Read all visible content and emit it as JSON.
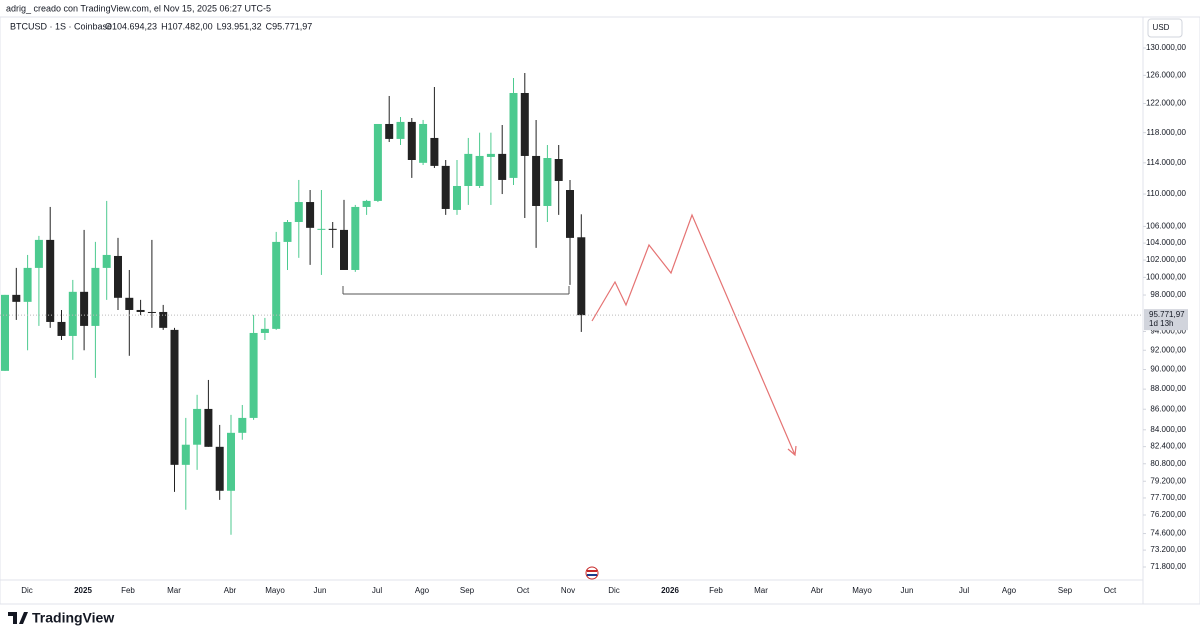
{
  "header": {
    "byline": "adrig_ creado con TradingView.com, el Nov 15, 2025 06:27 UTC-5",
    "symbol": "BTCUSD · 1S · Coinbase",
    "ohlc": [
      {
        "label": "O",
        "value": "104.694,23"
      },
      {
        "label": "H",
        "value": "107.482,00"
      },
      {
        "label": "L",
        "value": "93.951,32"
      },
      {
        "label": "C",
        "value": "95.771,97"
      }
    ]
  },
  "footer": {
    "brand": "TradingView"
  },
  "chart_data": {
    "type": "candlestick",
    "currency": "USD",
    "log_scale": true,
    "grid": false,
    "up_color": "#4cca8f",
    "down_color": "#222222",
    "categories": [
      null,
      null,
      null,
      null,
      null,
      null,
      null,
      null,
      null,
      null,
      null,
      null,
      null,
      null,
      null,
      null,
      null,
      null,
      null,
      null,
      null,
      null,
      null,
      null,
      null,
      null,
      null,
      null,
      null,
      null,
      null,
      null,
      null,
      null,
      null,
      null,
      null,
      null,
      null,
      null,
      null,
      null,
      null,
      null,
      null,
      null,
      null,
      null,
      null,
      null,
      null,
      null
    ],
    "open": [
      89860,
      98020,
      97240,
      101090,
      104380,
      95030,
      93520,
      98360,
      94600,
      101090,
      102480,
      97690,
      96340,
      96120,
      96120,
      94170,
      80700,
      82580,
      86030,
      82380,
      78340,
      83710,
      85150,
      93840,
      94280,
      104140,
      106540,
      109000,
      105710,
      105710,
      105580,
      100850,
      108390,
      109140,
      119180,
      117160,
      119460,
      114000,
      117290,
      113600,
      108020,
      111020,
      111020,
      114770,
      115170,
      112050,
      123480,
      114900,
      108510,
      114500,
      110510,
      104694.23
    ],
    "high": [
      98020,
      101090,
      102600,
      104860,
      108390,
      96340,
      99710,
      105580,
      104140,
      109140,
      104620,
      100850,
      97460,
      104380,
      96900,
      94390,
      85150,
      87430,
      88930,
      84470,
      85450,
      86420,
      95800,
      95470,
      105340,
      106780,
      111790,
      110510,
      110510,
      106540,
      109270,
      108640,
      109270,
      119180,
      123060,
      120130,
      120000,
      119730,
      124330,
      114370,
      114370,
      117290,
      118000,
      118000,
      119040,
      125620,
      126330,
      119730,
      116350,
      116350,
      111790,
      107482
    ],
    "low": [
      89860,
      95250,
      92000,
      94600,
      94390,
      93090,
      91000,
      92000,
      89140,
      97460,
      96340,
      91420,
      95772,
      94390,
      94170,
      78240,
      76660,
      80240,
      82380,
      77530,
      74500,
      83050,
      84960,
      93090,
      94170,
      100850,
      102260,
      101440,
      100280,
      103430,
      100850,
      100630,
      107410,
      109000,
      116750,
      116350,
      112050,
      113720,
      113330,
      107410,
      107410,
      108640,
      110770,
      108640,
      110000,
      111150,
      107030,
      103430,
      106540,
      107410,
      99140,
      93951.32
    ],
    "close": [
      98020,
      97240,
      101090,
      104380,
      95030,
      93520,
      98360,
      94600,
      101090,
      102600,
      97690,
      96340,
      96120,
      96020,
      94390,
      80700,
      82580,
      86030,
      82380,
      78340,
      83710,
      85150,
      93840,
      94280,
      104140,
      106540,
      109000,
      105830,
      105710,
      105580,
      100850,
      108390,
      109140,
      119180,
      117160,
      119460,
      114370,
      119180,
      113600,
      108140,
      111020,
      115170,
      114900,
      115170,
      111790,
      123480,
      114900,
      108510,
      114630,
      111660,
      104620,
      95771.97
    ],
    "last_price": 95771.97,
    "last_price_label": "95.771,97",
    "countdown": "1d 13h",
    "ylim": [
      70740,
      134540
    ],
    "yticks": [
      {
        "value": 130000,
        "label": "130.000,00"
      },
      {
        "value": 126000,
        "label": "126.000,00"
      },
      {
        "value": 122000,
        "label": "122.000,00"
      },
      {
        "value": 118000,
        "label": "118.000,00"
      },
      {
        "value": 114000,
        "label": "114.000,00"
      },
      {
        "value": 110000,
        "label": "110.000,00"
      },
      {
        "value": 106000,
        "label": "106.000,00"
      },
      {
        "value": 104000,
        "label": "104.000,00"
      },
      {
        "value": 102000,
        "label": "102.000,00"
      },
      {
        "value": 100000,
        "label": "100.000,00"
      },
      {
        "value": 98000,
        "label": "98.000,00"
      },
      {
        "value": 94000,
        "label": "94.000,00"
      },
      {
        "value": 92000,
        "label": "92.000,00"
      },
      {
        "value": 90000,
        "label": "90.000,00"
      },
      {
        "value": 88000,
        "label": "88.000,00"
      },
      {
        "value": 86000,
        "label": "86.000,00"
      },
      {
        "value": 84000,
        "label": "84.000,00"
      },
      {
        "value": 82400,
        "label": "82.400,00"
      },
      {
        "value": 80800,
        "label": "80.800,00"
      },
      {
        "value": 79200,
        "label": "79.200,00"
      },
      {
        "value": 77700,
        "label": "77.700,00"
      },
      {
        "value": 76200,
        "label": "76.200,00"
      },
      {
        "value": 74600,
        "label": "74.600,00"
      },
      {
        "value": 73200,
        "label": "73.200,00"
      },
      {
        "value": 71800,
        "label": "71.800,00"
      }
    ],
    "xtick_labels": [
      "Dic",
      "2025",
      "Feb",
      "Mar",
      "Abr",
      "Mayo",
      "Jun",
      "Jul",
      "Ago",
      "Sep",
      "Oct",
      "Nov",
      "Dic",
      "2026",
      "Feb",
      "Mar",
      "Abr",
      "Mayo",
      "Jun",
      "Jul",
      "Ago",
      "Sep",
      "Oct"
    ]
  }
}
